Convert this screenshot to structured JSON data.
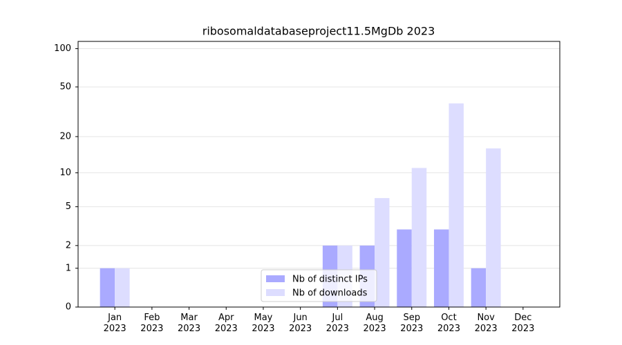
{
  "chart_data": {
    "type": "bar",
    "title": "ribosomaldatabaseproject11.5MgDb 2023",
    "categories": [
      "Jan\n2023",
      "Feb\n2023",
      "Mar\n2023",
      "Apr\n2023",
      "May\n2023",
      "Jun\n2023",
      "Jul\n2023",
      "Aug\n2023",
      "Sep\n2023",
      "Oct\n2023",
      "Nov\n2023",
      "Dec\n2023"
    ],
    "series": [
      {
        "name": "Nb of distinct IPs",
        "color": "#aaaaff",
        "values": [
          1,
          0,
          0,
          0,
          0,
          0,
          2,
          2,
          3,
          3,
          1,
          0
        ]
      },
      {
        "name": "Nb of downloads",
        "color": "#ddddff",
        "values": [
          1,
          0,
          0,
          0,
          0,
          0,
          2,
          6,
          11,
          37,
          16,
          0
        ]
      }
    ],
    "yscale": "log1p",
    "ylim": [
      0,
      114
    ],
    "yticks": [
      0,
      1,
      2,
      5,
      10,
      20,
      50,
      100
    ],
    "grid": true,
    "legend": "lower center"
  }
}
